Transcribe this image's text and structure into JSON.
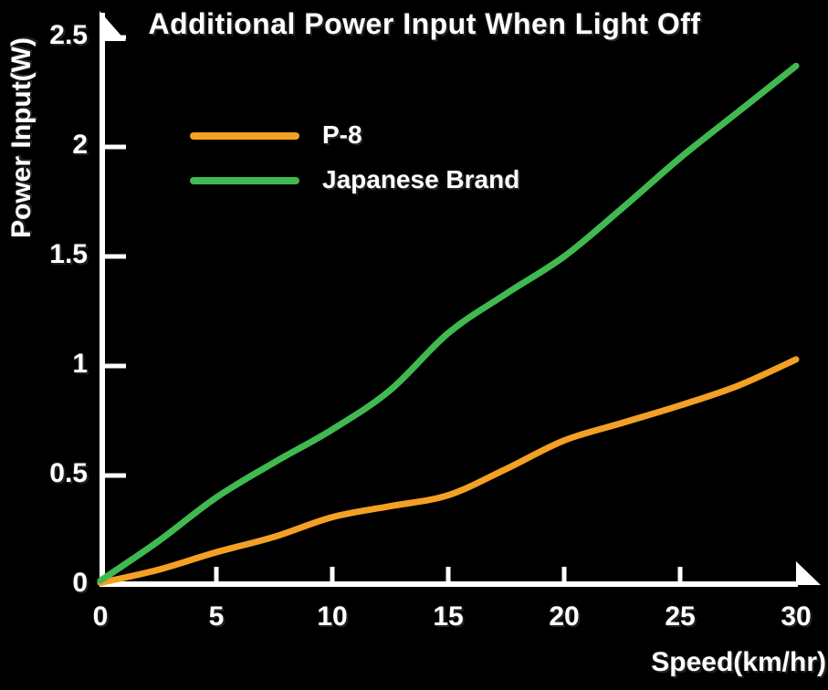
{
  "title": "Additional Power Input When Light Off",
  "axes": {
    "y_label": "Power Input(W)",
    "x_label": "Speed(km/hr)",
    "x_tick_labels": [
      "0",
      "5",
      "10",
      "15",
      "20",
      "25",
      "30"
    ],
    "y_tick_labels": [
      "0",
      "0.5",
      "1",
      "1.5",
      "2",
      "2.5"
    ]
  },
  "legend": [
    {
      "label": "P-8",
      "color": "#F3A024",
      "swatch": "orange-line"
    },
    {
      "label": "Japanese Brand",
      "color": "#41B951",
      "swatch": "green-line"
    }
  ],
  "colors": {
    "background": "#000000",
    "axis": "#FFFFFF",
    "text": "#FFFFFF",
    "p8_line": "#F3A024",
    "japanese_brand_line": "#41B951"
  },
  "chart_data": {
    "type": "line",
    "title": "Additional Power Input When Light Off",
    "xlabel": "Speed(km/hr)",
    "ylabel": "Power Input(W)",
    "xlim": [
      0,
      30
    ],
    "ylim": [
      0,
      2.5
    ],
    "x_ticks": [
      0,
      5,
      10,
      15,
      20,
      25,
      30
    ],
    "y_ticks": [
      0,
      0.5,
      1,
      1.5,
      2,
      2.5
    ],
    "grid": false,
    "legend_position": "upper-left",
    "x": [
      0,
      2.5,
      5,
      7.5,
      10,
      12.5,
      15,
      17.5,
      20,
      22.5,
      25,
      27.5,
      30
    ],
    "series": [
      {
        "name": "P-8",
        "color": "#F3A024",
        "values": [
          0.01,
          0.07,
          0.15,
          0.22,
          0.31,
          0.36,
          0.41,
          0.53,
          0.66,
          0.74,
          0.82,
          0.91,
          1.03
        ]
      },
      {
        "name": "Japanese Brand",
        "color": "#41B951",
        "values": [
          0.02,
          0.2,
          0.4,
          0.56,
          0.71,
          0.89,
          1.15,
          1.33,
          1.5,
          1.72,
          1.95,
          2.16,
          2.37
        ]
      }
    ]
  }
}
